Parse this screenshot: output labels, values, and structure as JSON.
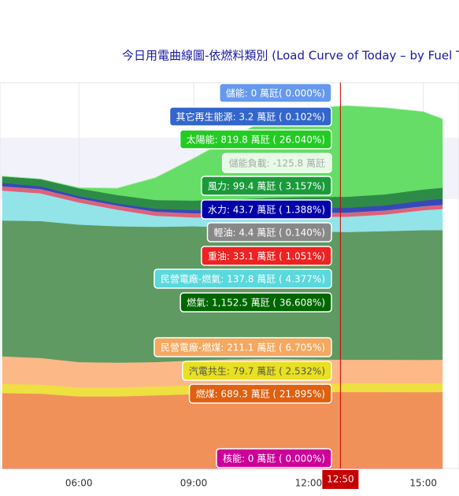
{
  "chart_data": {
    "type": "stacked_area",
    "title": "今日用電曲線圖-依燃料類別 (Load Curve of Today – by Fuel Type)",
    "x": [
      "04:00",
      "05:00",
      "06:00",
      "07:00",
      "08:00",
      "09:00",
      "10:00",
      "11:00",
      "12:00",
      "13:00",
      "14:00",
      "15:00",
      "15:30"
    ],
    "xlim": [
      "04:00",
      "15:30"
    ],
    "xticks": [
      "06:00",
      "09:00",
      "12:00",
      "15:00"
    ],
    "ylim": [
      0,
      3480
    ],
    "grid": true,
    "series": [
      {
        "name": "核能",
        "color": "#c8009a",
        "values": [
          0,
          0,
          0,
          0,
          0,
          0,
          0,
          0,
          0,
          0,
          0,
          0,
          0
        ]
      },
      {
        "name": "燃煤",
        "color": "#f0915a",
        "values": [
          680,
          675,
          650,
          650,
          660,
          670,
          680,
          685,
          690,
          690,
          690,
          689,
          690
        ]
      },
      {
        "name": "汽電共生",
        "color": "#eee040",
        "values": [
          82,
          82,
          80,
          80,
          80,
          80,
          80,
          80,
          80,
          80,
          80,
          80,
          80
        ]
      },
      {
        "name": "民營電廠-燃煤",
        "color": "#fdb888",
        "values": [
          250,
          240,
          230,
          225,
          220,
          225,
          225,
          225,
          215,
          211,
          211,
          211,
          211
        ]
      },
      {
        "name": "燃氣",
        "color": "#5e9a62",
        "values": [
          1225,
          1235,
          1240,
          1230,
          1220,
          1210,
          1190,
          1170,
          1155,
          1152,
          1160,
          1170,
          1170
        ]
      },
      {
        "name": "民營電廠-燃氣",
        "color": "#93e4e8",
        "values": [
          270,
          250,
          200,
          150,
          100,
          80,
          90,
          110,
          130,
          138,
          150,
          180,
          190
        ]
      },
      {
        "name": "重油",
        "color": "#e0607a",
        "values": [
          35,
          35,
          33,
          33,
          33,
          33,
          33,
          33,
          33,
          33,
          33,
          33,
          33
        ]
      },
      {
        "name": "輕油",
        "color": "#999999",
        "values": [
          4,
          4,
          4,
          4,
          4,
          4,
          4,
          4,
          4,
          4,
          4,
          4,
          4
        ]
      },
      {
        "name": "水力",
        "color": "#3848b8",
        "values": [
          30,
          25,
          20,
          20,
          25,
          30,
          35,
          40,
          43,
          44,
          45,
          50,
          55
        ]
      },
      {
        "name": "風力",
        "color": "#2e8b47",
        "values": [
          60,
          65,
          70,
          75,
          80,
          85,
          90,
          95,
          99,
          99,
          100,
          100,
          100
        ]
      },
      {
        "name": "太陽能",
        "color": "#66dd66",
        "values": [
          0,
          0,
          5,
          60,
          200,
          380,
          560,
          720,
          800,
          820,
          780,
          700,
          620
        ]
      },
      {
        "name": "其它再生能源",
        "color": "#aaf0aa",
        "values": [
          3,
          3,
          3,
          3,
          3,
          3,
          3,
          3,
          3,
          3,
          3,
          3,
          3
        ]
      }
    ],
    "crosshair": "12:50",
    "tooltips": [
      {
        "text": "儲能: 0 萬瓩( 0.000%)",
        "color": "#6699ee",
        "text_color": "#ffffff"
      },
      {
        "text": "其它再生能源: 3.2 萬瓩 ( 0.102%)",
        "color": "#3366cc",
        "text_color": "#ffffff"
      },
      {
        "text": "太陽能: 819.8 萬瓩 ( 26.040%)",
        "color": "#22cc22",
        "text_color": "#ffffff"
      },
      {
        "text": "儲能負載: -125.8 萬瓩",
        "color": "#e6fae6",
        "text_color": "#aaaaaa"
      },
      {
        "text": "風力: 99.4 萬瓩 ( 3.157%)",
        "color": "#1a9a3a",
        "text_color": "#ffffff"
      },
      {
        "text": "水力: 43.7 萬瓩 ( 1.388%)",
        "color": "#0000aa",
        "text_color": "#ffffff"
      },
      {
        "text": "輕油: 4.4 萬瓩 ( 0.140%)",
        "color": "#888888",
        "text_color": "#ffffff"
      },
      {
        "text": "重油: 33.1 萬瓩 ( 1.051%)",
        "color": "#ee2222",
        "text_color": "#ffffff"
      },
      {
        "text": "民營電廠-燃氣: 137.8 萬瓩 ( 4.377%)",
        "color": "#5ad8dc",
        "text_color": "#ffffff"
      },
      {
        "text": "燃氣: 1,152.5 萬瓩 ( 36.608%)",
        "color": "#006600",
        "text_color": "#ffffff"
      },
      {
        "text": "民營電廠-燃煤: 211.1 萬瓩 ( 6.705%)",
        "color": "#f4a860",
        "text_color": "#ffffff"
      },
      {
        "text": "汽電共生: 79.7 萬瓩 ( 2.532%)",
        "color": "#e8e020",
        "text_color": "#555555"
      },
      {
        "text": "燃煤: 689.3 萬瓩 ( 21.895%)",
        "color": "#e06010",
        "text_color": "#ffffff"
      },
      {
        "text": "核能: 0 萬瓩 ( 0.000%)",
        "color": "#cc0099",
        "text_color": "#ffffff"
      }
    ]
  }
}
